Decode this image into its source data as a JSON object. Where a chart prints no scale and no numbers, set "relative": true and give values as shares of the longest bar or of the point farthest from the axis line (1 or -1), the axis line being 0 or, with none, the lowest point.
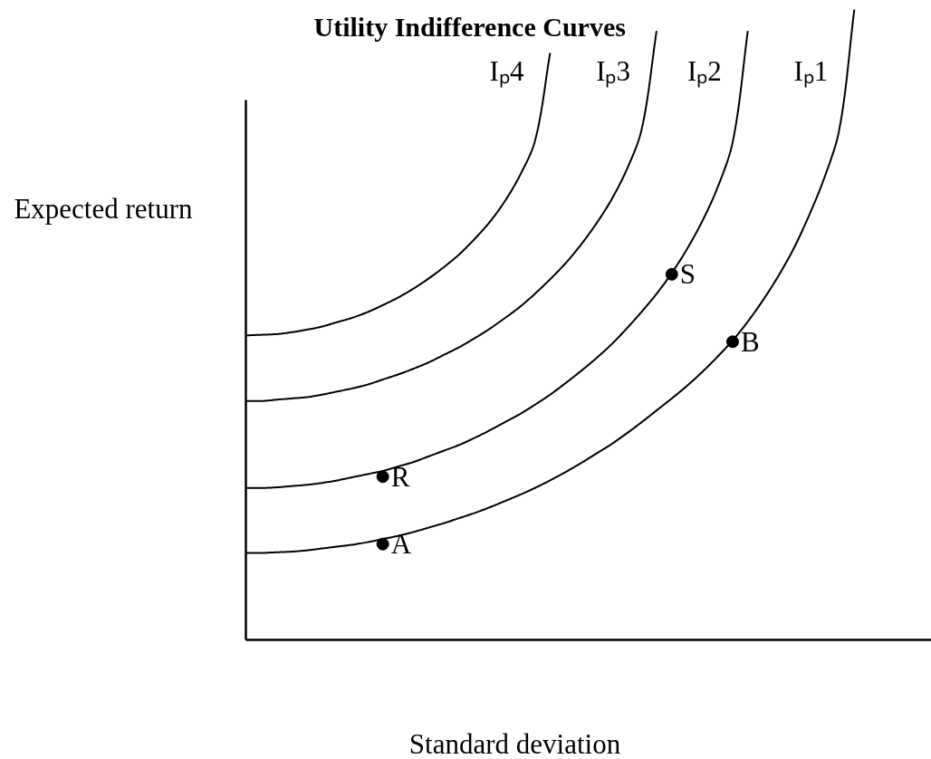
{
  "chart_data": {
    "type": "line",
    "title": "Utility Indifference Curves",
    "xlabel": "Standard deviation",
    "ylabel": "Expected return",
    "relative": true,
    "categories": [
      null,
      null,
      null,
      null,
      null,
      null,
      null,
      null,
      null,
      null,
      null,
      null,
      null,
      null,
      null,
      null,
      null,
      null,
      null,
      null,
      null,
      null,
      null,
      null,
      null,
      null,
      null,
      null,
      null,
      null,
      null,
      null,
      null,
      null,
      null,
      null,
      null,
      null,
      null,
      null,
      null,
      null,
      null,
      null,
      null
    ],
    "series": [
      {
        "name": "Iₚ4",
        "color": "#000000",
        "values": [
          0.483,
          0.484,
          0.485,
          0.488,
          0.492,
          0.497,
          0.504,
          0.511,
          0.52,
          0.531,
          0.543,
          0.557,
          0.573,
          0.591,
          0.611,
          0.635,
          0.662,
          0.695,
          0.736,
          0.791,
          0.931,
          null,
          null,
          null,
          null,
          null,
          null,
          null,
          null,
          null,
          null,
          null,
          null,
          null,
          null,
          null,
          null,
          null,
          null,
          null,
          null,
          null,
          null,
          null,
          null
        ]
      },
      {
        "name": "Iₚ3",
        "color": "#000000",
        "values": [
          0.379,
          0.379,
          0.381,
          0.383,
          0.385,
          0.389,
          0.394,
          0.399,
          0.405,
          0.413,
          0.421,
          0.43,
          0.44,
          0.452,
          0.464,
          0.478,
          0.493,
          0.51,
          0.528,
          0.549,
          0.572,
          0.597,
          0.626,
          0.659,
          0.697,
          0.744,
          0.808,
          0.966,
          null,
          null,
          null,
          null,
          null,
          null,
          null,
          null,
          null,
          null,
          null,
          null,
          null,
          null,
          null,
          null,
          null
        ]
      },
      {
        "name": "Iₚ2",
        "color": "#000000",
        "values": [
          0.241,
          0.241,
          0.242,
          0.244,
          0.246,
          0.249,
          0.253,
          0.258,
          0.263,
          0.268,
          0.275,
          0.282,
          0.291,
          0.3,
          0.309,
          0.32,
          0.332,
          0.345,
          0.358,
          0.373,
          0.389,
          0.407,
          0.426,
          0.446,
          0.468,
          0.493,
          0.52,
          0.549,
          0.582,
          0.62,
          0.664,
          0.717,
          0.789,
          0.966,
          null,
          null,
          null,
          null,
          null,
          null,
          null,
          null,
          null,
          null,
          null
        ]
      },
      {
        "name": "Iₚ1",
        "color": "#000000",
        "values": [
          0.138,
          0.138,
          0.139,
          0.14,
          0.142,
          0.145,
          0.148,
          0.151,
          0.155,
          0.16,
          0.165,
          0.171,
          0.178,
          0.185,
          0.193,
          0.201,
          0.21,
          0.22,
          0.23,
          0.241,
          0.253,
          0.266,
          0.28,
          0.295,
          0.31,
          0.327,
          0.345,
          0.364,
          0.383,
          0.403,
          0.425,
          0.449,
          0.475,
          0.505,
          0.539,
          0.577,
          0.62,
          0.672,
          0.731,
          0.808,
          1.0,
          null,
          null,
          null,
          null
        ]
      },
      {
        "marker": "circle",
        "name": "A",
        "color": "#000000",
        "values": [
          null,
          null,
          null,
          null,
          null,
          null,
          null,
          null,
          null,
          0.152,
          null,
          null,
          null,
          null,
          null,
          null,
          null,
          null,
          null,
          null,
          null,
          null,
          null,
          null,
          null,
          null,
          null,
          null,
          null,
          null,
          null,
          null,
          null,
          null,
          null,
          null,
          null,
          null,
          null,
          null,
          null,
          null,
          null,
          null,
          null
        ]
      },
      {
        "marker": "circle",
        "name": "B",
        "color": "#000000",
        "values": [
          null,
          null,
          null,
          null,
          null,
          null,
          null,
          null,
          null,
          null,
          null,
          null,
          null,
          null,
          null,
          null,
          null,
          null,
          null,
          null,
          null,
          null,
          null,
          null,
          null,
          null,
          null,
          null,
          null,
          null,
          null,
          null,
          0.473,
          null,
          null,
          null,
          null,
          null,
          null,
          null,
          null,
          null,
          null,
          null,
          null
        ]
      },
      {
        "marker": "circle",
        "name": "R",
        "color": "#000000",
        "values": [
          null,
          null,
          null,
          null,
          null,
          null,
          null,
          null,
          null,
          0.259,
          null,
          null,
          null,
          null,
          null,
          null,
          null,
          null,
          null,
          null,
          null,
          null,
          null,
          null,
          null,
          null,
          null,
          null,
          null,
          null,
          null,
          null,
          null,
          null,
          null,
          null,
          null,
          null,
          null,
          null,
          null,
          null,
          null,
          null,
          null
        ]
      },
      {
        "marker": "circle",
        "name": "S",
        "color": "#000000",
        "values": [
          null,
          null,
          null,
          null,
          null,
          null,
          null,
          null,
          null,
          null,
          null,
          null,
          null,
          null,
          null,
          null,
          null,
          null,
          null,
          null,
          null,
          null,
          null,
          null,
          null,
          null,
          null,
          null,
          0.58,
          null,
          null,
          null,
          null,
          null,
          null,
          null,
          null,
          null,
          null,
          null,
          null,
          null,
          null,
          null,
          null
        ]
      }
    ]
  }
}
